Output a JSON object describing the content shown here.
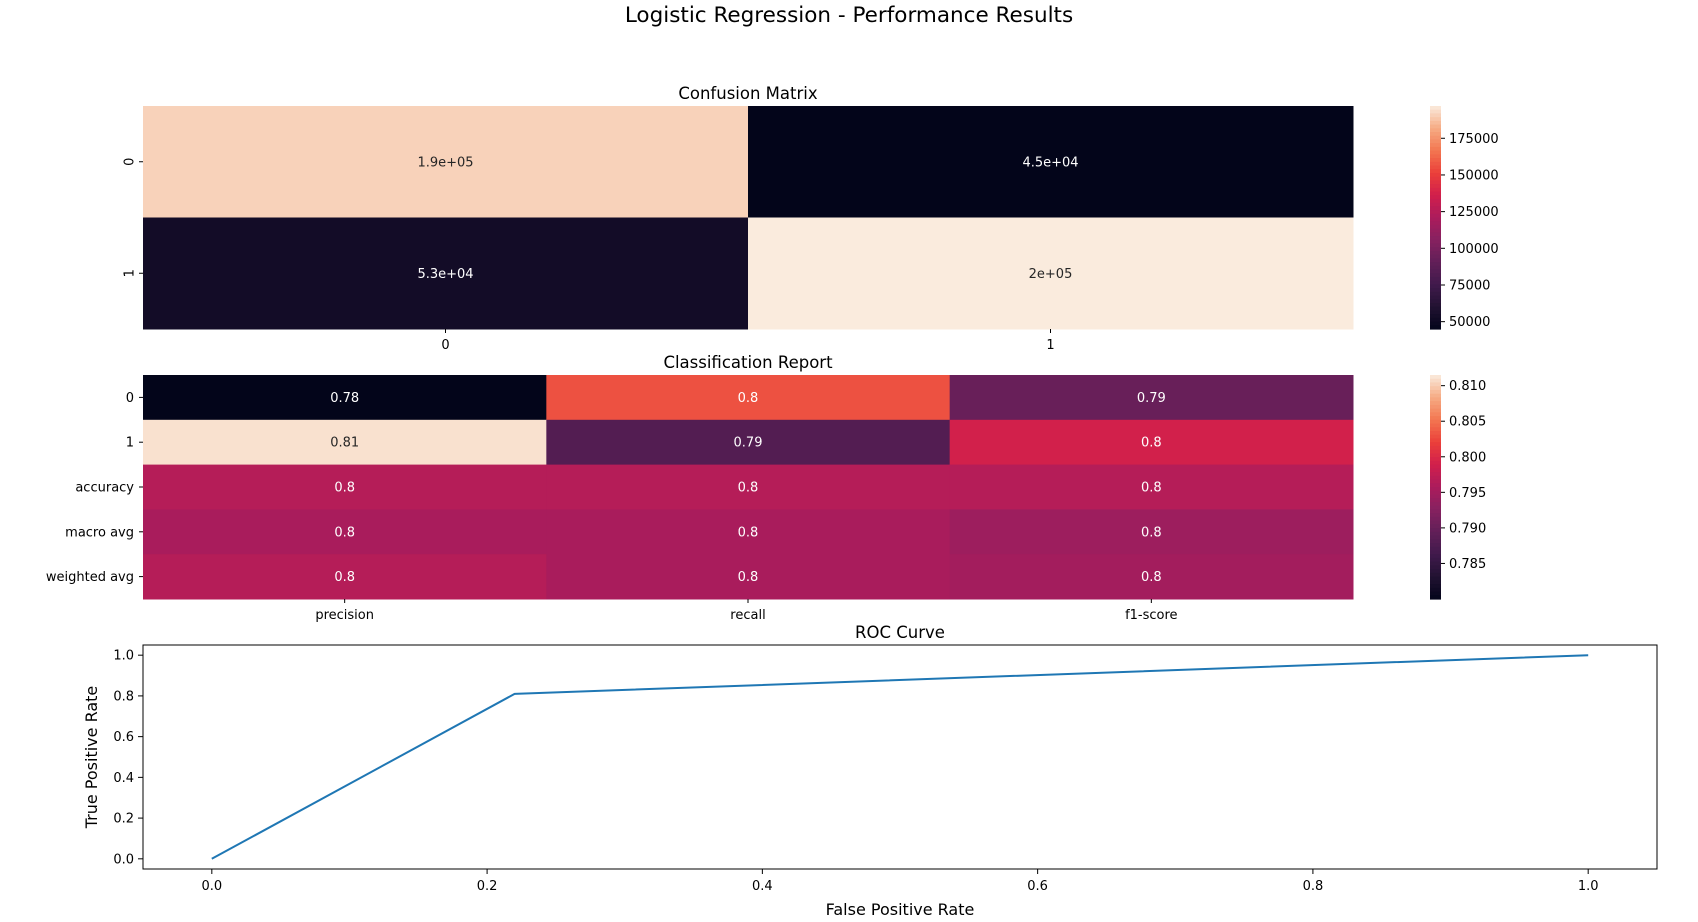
{
  "figure_title": "Logistic Regression - Performance Results",
  "chart_data": [
    {
      "type": "heatmap",
      "title": "Confusion Matrix",
      "row_labels": [
        "0",
        "1"
      ],
      "col_labels": [
        "0",
        "1"
      ],
      "values": [
        [
          191000,
          45000
        ],
        [
          53000,
          197000
        ]
      ],
      "annotations": [
        [
          "1.9e+05",
          "4.5e+04"
        ],
        [
          "5.3e+04",
          "2e+05"
        ]
      ],
      "colorbar": {
        "min": 45000,
        "max": 197000,
        "ticks": [
          50000,
          75000,
          100000,
          125000,
          150000,
          175000
        ],
        "tick_labels": [
          "50000",
          "75000",
          "100000",
          "125000",
          "150000",
          "175000"
        ]
      },
      "colormap": "rocket"
    },
    {
      "type": "heatmap",
      "title": "Classification Report",
      "row_labels": [
        "0",
        "1",
        "accuracy",
        "macro avg",
        "weighted avg"
      ],
      "col_labels": [
        "precision",
        "recall",
        "f1-score"
      ],
      "values": [
        [
          0.78,
          0.803,
          0.79
        ],
        [
          0.811,
          0.788,
          0.799
        ],
        [
          0.7965,
          0.7965,
          0.7965
        ],
        [
          0.7955,
          0.7955,
          0.7945
        ],
        [
          0.7965,
          0.7955,
          0.795
        ]
      ],
      "annotations": [
        [
          "0.78",
          "0.8",
          "0.79"
        ],
        [
          "0.81",
          "0.79",
          "0.8"
        ],
        [
          "0.8",
          "0.8",
          "0.8"
        ],
        [
          "0.8",
          "0.8",
          "0.8"
        ],
        [
          "0.8",
          "0.8",
          "0.8"
        ]
      ],
      "colorbar": {
        "min": 0.78,
        "max": 0.8115,
        "ticks": [
          0.785,
          0.79,
          0.795,
          0.8,
          0.805,
          0.81
        ],
        "tick_labels": [
          "0.785",
          "0.790",
          "0.795",
          "0.800",
          "0.805",
          "0.810"
        ]
      },
      "colormap": "rocket"
    },
    {
      "type": "line",
      "title": "ROC Curve",
      "xlabel": "False Positive Rate",
      "ylabel": "True Positive Rate",
      "xlim": [
        -0.05,
        1.05
      ],
      "ylim": [
        -0.05,
        1.05
      ],
      "x_ticks": [
        0.0,
        0.2,
        0.4,
        0.6,
        0.8,
        1.0
      ],
      "x_tick_labels": [
        "0.0",
        "0.2",
        "0.4",
        "0.6",
        "0.8",
        "1.0"
      ],
      "y_ticks": [
        0.0,
        0.2,
        0.4,
        0.6,
        0.8,
        1.0
      ],
      "y_tick_labels": [
        "0.0",
        "0.2",
        "0.4",
        "0.6",
        "0.8",
        "1.0"
      ],
      "series": [
        {
          "x": [
            0.0,
            0.22,
            1.0
          ],
          "y": [
            0.0,
            0.81,
            1.0
          ],
          "color": "#1f77b4"
        }
      ]
    }
  ]
}
